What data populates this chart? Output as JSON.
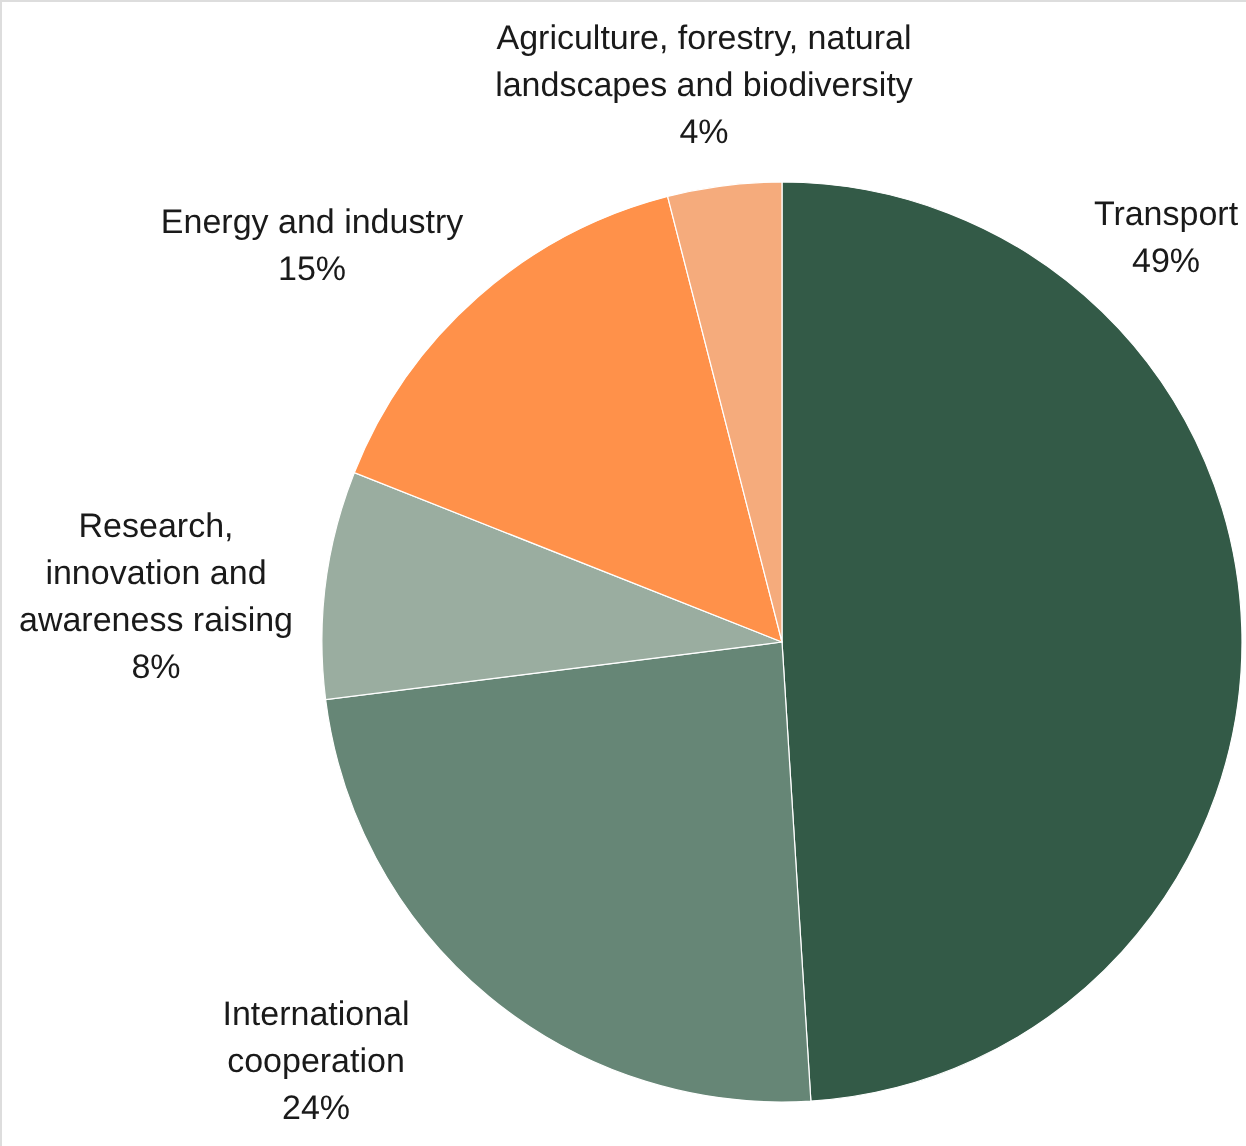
{
  "chart_data": {
    "type": "pie",
    "categories": [
      "Transport",
      "International cooperation",
      "Research, innovation and awareness raising",
      "Energy and industry",
      "Agriculture, forestry, natural landscapes and biodiversity"
    ],
    "values": [
      49,
      24,
      8,
      15,
      4
    ],
    "value_labels": [
      "49%",
      "24%",
      "8%",
      "15%",
      "4%"
    ],
    "colors": [
      "#335a47",
      "#668676",
      "#9aada0",
      "#ff914a",
      "#f5ab7c"
    ]
  }
}
